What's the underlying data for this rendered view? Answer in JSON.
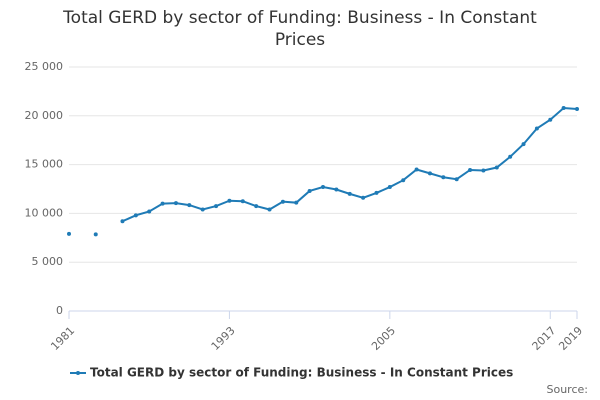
{
  "chart_data": {
    "type": "line",
    "title": "Total GERD by sector of Funding: Business - In Constant Prices",
    "x": [
      1981,
      1982,
      1983,
      1984,
      1985,
      1986,
      1987,
      1988,
      1989,
      1990,
      1991,
      1992,
      1993,
      1994,
      1995,
      1996,
      1997,
      1998,
      1999,
      2000,
      2001,
      2002,
      2003,
      2004,
      2005,
      2006,
      2007,
      2008,
      2009,
      2010,
      2011,
      2012,
      2013,
      2014,
      2015,
      2016,
      2017,
      2018,
      2019
    ],
    "series": [
      {
        "name": "Total GERD by sector of Funding: Business - In Constant Prices",
        "color": "#1f7bb6",
        "values": [
          7900,
          null,
          7850,
          null,
          9200,
          9800,
          10200,
          11000,
          11050,
          10850,
          10400,
          10750,
          11300,
          11250,
          10750,
          10400,
          11200,
          11100,
          12300,
          12700,
          12450,
          12000,
          11600,
          12100,
          12700,
          13400,
          14500,
          14100,
          13700,
          13500,
          14450,
          14400,
          14700,
          15800,
          17100,
          18700,
          19600,
          20800,
          20700
        ]
      }
    ],
    "xlim": [
      1981,
      2019
    ],
    "xticks": [
      1981,
      1993,
      2005,
      2017,
      2019
    ],
    "ylim": [
      0,
      25000
    ],
    "yticks": [
      0,
      {
        "value": 5000,
        "label": "5 000"
      },
      {
        "value": 10000,
        "label": "10 000"
      },
      {
        "value": 15000,
        "label": "15 000"
      },
      {
        "value": 20000,
        "label": "20 000"
      },
      {
        "value": 25000,
        "label": "25 000"
      }
    ],
    "grid": true,
    "source": "Source:"
  }
}
